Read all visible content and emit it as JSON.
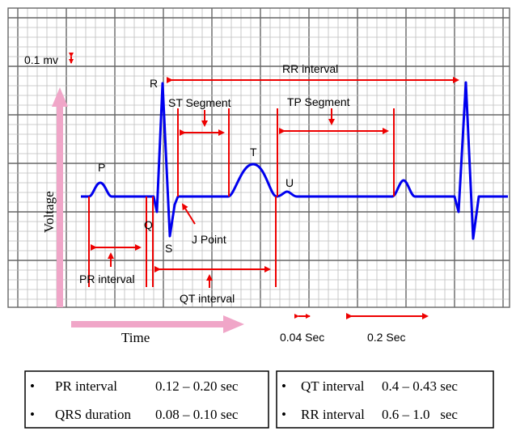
{
  "labels": {
    "scale": "0.1 mv",
    "rr_interval": "RR interval",
    "st_segment": "ST Segment",
    "tp_segment": "TP Segment",
    "p": "P",
    "q": "Q",
    "r": "R",
    "s": "S",
    "t": "T",
    "u": "U",
    "j_point": "J Point",
    "pr_interval": "PR interval",
    "qt_interval": "QT interval",
    "voltage": "Voltage",
    "time": "Time",
    "small_box": "0.04 Sec",
    "large_box": "0.2 Sec"
  },
  "table": {
    "left": [
      {
        "name": "PR interval",
        "value": "0.12 – 0.20 sec"
      },
      {
        "name": "QRS duration",
        "value": "0.08 – 0.10 sec"
      }
    ],
    "right": [
      {
        "name": "QT interval",
        "value": "0.4 – 0.43 sec"
      },
      {
        "name": "RR interval",
        "value": "0.6 – 1.0   sec"
      }
    ]
  },
  "colors": {
    "trace": "#0000ee",
    "annotation": "#ee0000",
    "axis_arrow": "#f0a6c8",
    "grid_major": "#666666",
    "grid_minor": "#bdbdbd"
  }
}
